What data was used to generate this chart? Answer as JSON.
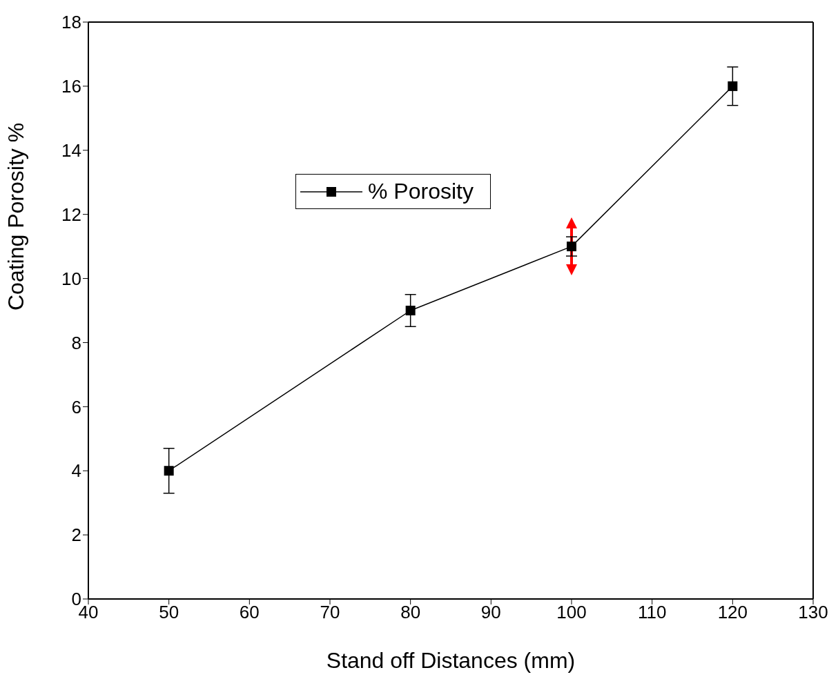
{
  "chart_data": {
    "type": "line",
    "xlabel": "Stand off Distances (mm)",
    "ylabel": "Coating Porosity %",
    "x": [
      50,
      80,
      100,
      120
    ],
    "series": [
      {
        "name": "% Porosity",
        "color": "#000000",
        "values": [
          4,
          9,
          11,
          16
        ],
        "errors": [
          0.7,
          0.5,
          0.3,
          0.6
        ]
      }
    ],
    "xlim": [
      40,
      130
    ],
    "xticks": [
      40,
      50,
      60,
      70,
      80,
      90,
      100,
      110,
      120,
      130
    ],
    "ylim": [
      0,
      18
    ],
    "yticks": [
      0,
      2,
      4,
      6,
      8,
      10,
      12,
      14,
      16,
      18
    ],
    "legend": "top left",
    "marker": "square",
    "line_style": "solid"
  }
}
